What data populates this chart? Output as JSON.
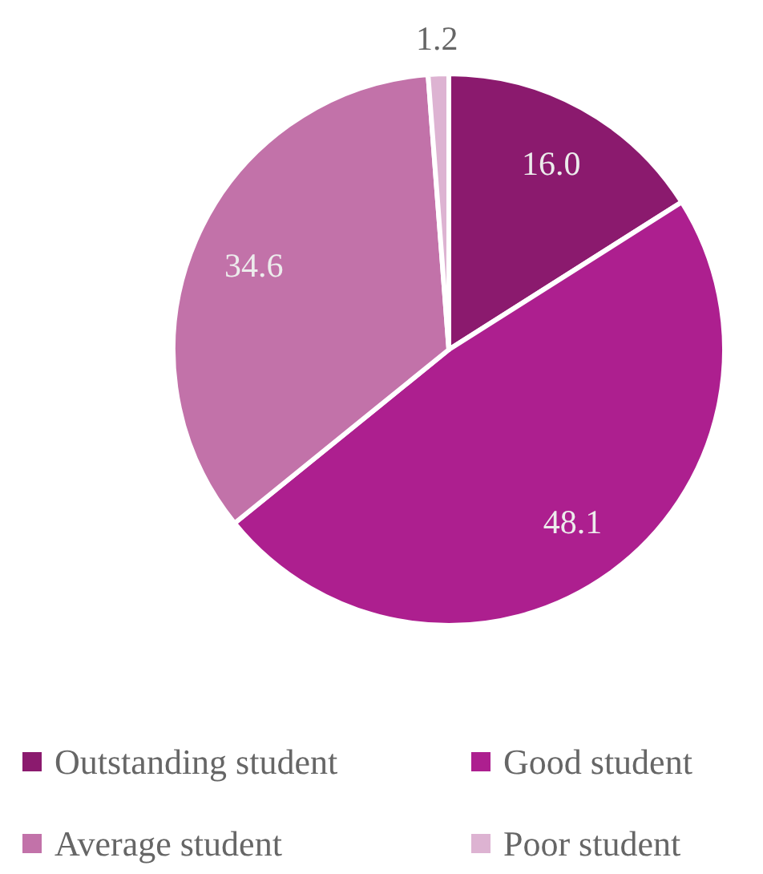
{
  "chart_data": {
    "type": "pie",
    "categories": [
      "Outstanding student",
      "Good student",
      "Average student",
      "Poor student"
    ],
    "values": [
      16.0,
      48.1,
      34.6,
      1.2
    ],
    "value_labels": [
      "16.0",
      "48.1",
      "34.6",
      "1.2"
    ],
    "colors": [
      "#8b1a6e",
      "#ad1f8f",
      "#c272a9",
      "#ddb3d2"
    ],
    "legend": "bottom"
  }
}
